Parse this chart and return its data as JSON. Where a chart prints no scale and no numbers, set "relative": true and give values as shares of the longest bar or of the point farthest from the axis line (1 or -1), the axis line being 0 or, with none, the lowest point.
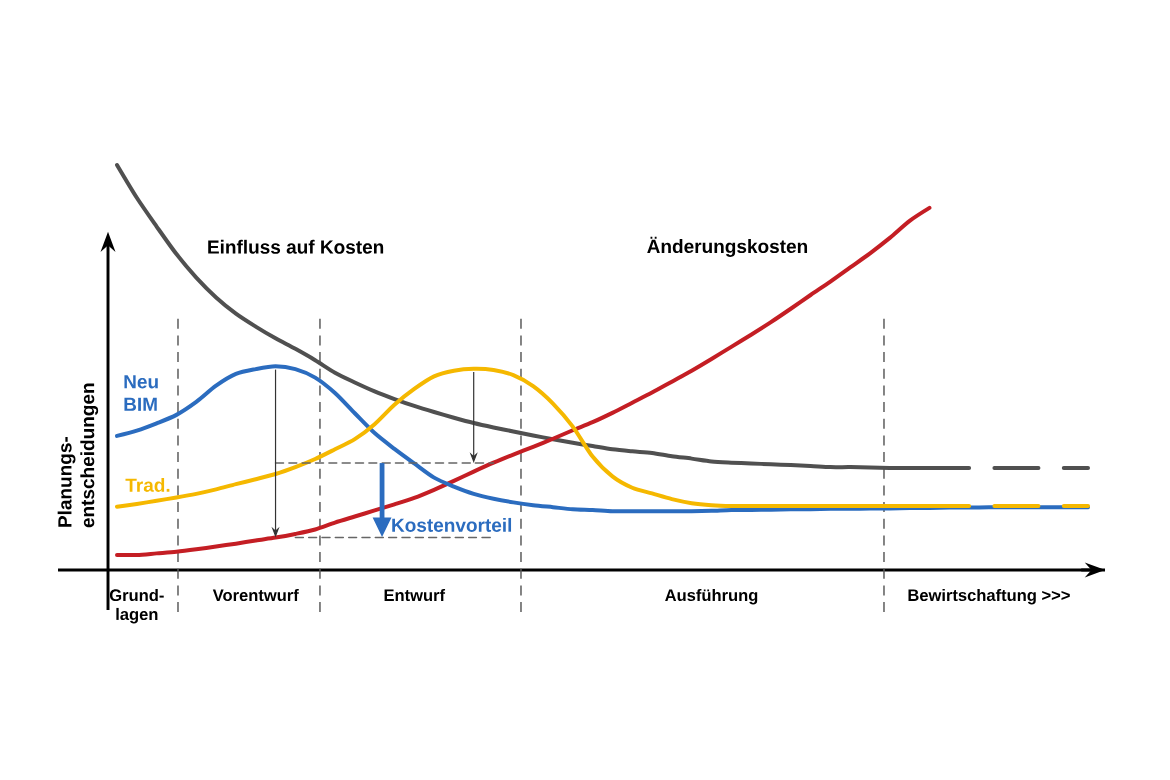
{
  "chart_data": {
    "type": "line",
    "relative": true,
    "ylabel": "Planungs-entscheidungen",
    "categories": [
      null,
      "Grund-lagen",
      null,
      null,
      null,
      null,
      null,
      "Vorentwurf",
      null,
      null,
      null,
      null,
      null,
      null,
      null,
      "Entwurf",
      null,
      null,
      null,
      null,
      null,
      null,
      null,
      null,
      null,
      null,
      null,
      null,
      null,
      null,
      "Ausführung",
      null,
      null,
      null,
      null,
      null,
      null,
      null,
      null,
      null,
      null,
      null,
      null,
      null,
      "Bewirtschaftung >>>",
      null,
      null,
      null,
      null,
      null
    ],
    "series": [
      {
        "name": "Einfluss auf Kosten",
        "color": "#505050",
        "values": [
          1.0,
          0.919,
          0.848,
          0.78,
          0.722,
          0.673,
          0.633,
          0.601,
          0.572,
          0.546,
          0.518,
          0.487,
          0.463,
          0.441,
          0.422,
          0.405,
          0.39,
          0.376,
          0.363,
          0.352,
          0.342,
          0.332,
          0.323,
          0.314,
          0.306,
          0.298,
          0.293,
          0.289,
          0.281,
          0.275,
          0.268,
          0.265,
          0.263,
          0.261,
          0.259,
          0.257,
          0.254,
          0.254,
          0.253,
          0.252,
          0.252,
          0.252,
          0.252,
          0.252,
          null,
          null,
          null,
          null,
          null,
          null
        ]
      },
      {
        "color": "#505050",
        "line_style": "dashed",
        "values": [
          null,
          null,
          null,
          null,
          null,
          null,
          null,
          null,
          null,
          null,
          null,
          null,
          null,
          null,
          null,
          null,
          null,
          null,
          null,
          null,
          null,
          null,
          null,
          null,
          null,
          null,
          null,
          null,
          null,
          null,
          null,
          null,
          null,
          null,
          null,
          null,
          null,
          null,
          null,
          null,
          null,
          null,
          null,
          0.252,
          0.252,
          0.252,
          0.252,
          0.252,
          0.252,
          0.252
        ]
      },
      {
        "name": "Änderungskosten",
        "color": "#c41e24",
        "values": [
          0.037,
          0.037,
          0.041,
          0.045,
          0.051,
          0.058,
          0.065,
          0.073,
          0.08,
          0.089,
          0.1,
          0.117,
          0.132,
          0.147,
          0.162,
          0.178,
          0.198,
          0.22,
          0.243,
          0.265,
          0.285,
          0.304,
          0.324,
          0.345,
          0.365,
          0.388,
          0.413,
          0.438,
          0.465,
          0.492,
          0.521,
          0.551,
          0.581,
          0.612,
          0.645,
          0.679,
          0.712,
          0.747,
          0.782,
          0.82,
          0.862,
          0.894,
          null,
          null,
          null,
          null,
          null,
          null,
          null,
          null
        ]
      },
      {
        "name": "Neu BIM",
        "color": "#2b6cbf",
        "values": [
          0.331,
          0.344,
          0.362,
          0.383,
          0.415,
          0.455,
          0.484,
          0.496,
          0.503,
          0.496,
          0.475,
          0.437,
          0.387,
          0.338,
          0.299,
          0.263,
          0.228,
          0.206,
          0.188,
          0.176,
          0.167,
          0.16,
          0.155,
          0.15,
          0.148,
          0.145,
          0.145,
          0.145,
          0.145,
          0.145,
          0.146,
          0.148,
          0.148,
          0.149,
          0.15,
          0.15,
          0.151,
          0.151,
          0.152,
          0.152,
          0.153,
          0.153,
          0.154,
          0.154,
          0.155,
          0.155,
          0.155,
          0.155,
          0.155,
          0.155
        ]
      },
      {
        "name": "Trad.",
        "color": "#f5b800",
        "values": [
          0.156,
          0.163,
          0.171,
          0.179,
          0.188,
          0.199,
          0.212,
          0.224,
          0.237,
          0.254,
          0.274,
          0.298,
          0.323,
          0.36,
          0.408,
          0.447,
          0.478,
          0.492,
          0.497,
          0.494,
          0.481,
          0.454,
          0.411,
          0.354,
          0.28,
          0.231,
          0.203,
          0.189,
          0.175,
          0.165,
          0.16,
          0.158,
          0.158,
          0.158,
          0.158,
          0.158,
          0.158,
          0.158,
          0.158,
          0.158,
          0.158,
          0.158,
          0.158,
          0.158,
          null,
          null,
          null,
          null,
          null,
          null
        ]
      },
      {
        "color": "#f5b800",
        "line_style": "dashed",
        "values": [
          null,
          null,
          null,
          null,
          null,
          null,
          null,
          null,
          null,
          null,
          null,
          null,
          null,
          null,
          null,
          null,
          null,
          null,
          null,
          null,
          null,
          null,
          null,
          null,
          null,
          null,
          null,
          null,
          null,
          null,
          null,
          null,
          null,
          null,
          null,
          null,
          null,
          null,
          null,
          null,
          null,
          null,
          null,
          0.158,
          0.158,
          0.158,
          0.158,
          0.158,
          0.158,
          0.158
        ]
      },
      {
        "color": "#666666",
        "line_style": "dashed",
        "values": [
          null,
          null,
          null,
          null,
          null,
          null,
          null,
          null,
          0.264,
          0.264,
          0.264,
          0.264,
          0.264,
          0.264,
          0.264,
          0.264,
          0.264,
          0.264,
          0.264,
          0.264,
          null,
          null,
          null,
          null,
          null,
          null,
          null,
          null,
          null,
          null,
          null,
          null,
          null,
          null,
          null,
          null,
          null,
          null,
          null,
          null,
          null,
          null,
          null,
          null,
          null,
          null,
          null,
          null,
          null,
          null
        ]
      },
      {
        "color": "#666666",
        "line_style": "dashed",
        "values": [
          null,
          null,
          null,
          null,
          null,
          null,
          null,
          null,
          null,
          0.08,
          0.08,
          0.08,
          0.08,
          0.08,
          0.08,
          0.08,
          0.08,
          0.08,
          0.08,
          0.08,
          null,
          null,
          null,
          null,
          null,
          null,
          null,
          null,
          null,
          null,
          null,
          null,
          null,
          null,
          null,
          null,
          null,
          null,
          null,
          null,
          null,
          null,
          null,
          null,
          null,
          null,
          null,
          null,
          null,
          null
        ]
      }
    ],
    "annotations": [
      "Kostenvorteil"
    ]
  }
}
